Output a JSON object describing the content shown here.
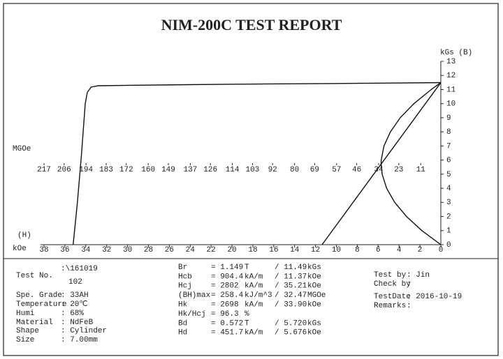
{
  "title": "NIM-200C TEST REPORT",
  "chart_data": {
    "type": "line",
    "x_label": "kOe",
    "h_label": "(H)",
    "x2_label": "MGOe",
    "y_label": "kGs (B)",
    "xlim": [
      38,
      0
    ],
    "xticks": [
      38,
      36,
      34,
      32,
      30,
      28,
      26,
      24,
      22,
      20,
      18,
      16,
      14,
      12,
      10,
      8,
      6,
      4,
      2,
      0
    ],
    "x2lim": [
      217,
      0
    ],
    "x2ticks": [
      217,
      206,
      194,
      183,
      172,
      160,
      149,
      137,
      126,
      114,
      103,
      92,
      80,
      69,
      57,
      46,
      34,
      23,
      11
    ],
    "ylim": [
      0,
      13
    ],
    "yticks": [
      0,
      1,
      2,
      3,
      4,
      5,
      6,
      7,
      8,
      9,
      10,
      11,
      12,
      13
    ],
    "series": [
      {
        "color": "#111",
        "x": [
          0,
          5,
          10,
          20,
          30,
          32.8,
          33.5,
          33.85,
          34.05,
          34.4,
          34.8,
          35.21
        ],
        "y": [
          11.49,
          11.46,
          11.43,
          11.38,
          11.3,
          11.27,
          11.17,
          10.8,
          10.0,
          6.5,
          3.0,
          0
        ]
      },
      {
        "color": "#111",
        "x": [
          0,
          11.37
        ],
        "y": [
          11.49,
          0
        ]
      },
      {
        "color": "#111",
        "axis": "x2",
        "x": [
          0,
          10.38,
          18.78,
          25.2,
          29.65,
          32.1,
          32.66,
          32.6,
          31.1,
          27.6,
          22.2,
          14.7,
          5.3,
          0
        ],
        "y": [
          0,
          1,
          2,
          3,
          4,
          5,
          5.745,
          6,
          7,
          8,
          9,
          10,
          11,
          11.49
        ]
      }
    ]
  },
  "report": {
    "left": [
      {
        "label": "Test No.",
        "value": [
          ":\\161019",
          "102"
        ]
      },
      {
        "label": "Spe. Grade",
        "value": [
          ": 33AH"
        ]
      },
      {
        "label": "Temperature",
        "value": [
          ": 20℃"
        ]
      },
      {
        "label": "Humi",
        "value": [
          ": 68%"
        ]
      },
      {
        "label": "Material",
        "value": [
          ": NdFeB"
        ]
      },
      {
        "label": "Shape",
        "value": [
          ": Cylinder"
        ]
      },
      {
        "label": "Size",
        "value": [
          ": 7.00mm"
        ]
      }
    ],
    "measurements": [
      [
        "Br",
        "= 1.149",
        "T",
        "/ 11.49",
        "kGs"
      ],
      [
        "Hcb",
        "= 904.4",
        "kA/m",
        "/ 11.37",
        "kOe"
      ],
      [
        "Hcj",
        "= 2802",
        "kA/m",
        "/ 35.21",
        "kOe"
      ],
      [
        "(BH)max",
        "= 258.4",
        "kJ/m^3",
        "/ 32.47",
        "MGOe"
      ],
      [
        "Hk",
        "= 2698",
        "kA/m",
        "/ 33.90",
        "kOe"
      ],
      [
        "Hk/Hcj",
        "= 96.3",
        "%",
        "",
        ""
      ],
      [
        "Bd",
        "= 0.572",
        "T",
        "/ 5.720",
        "kGs"
      ],
      [
        "Hd",
        "= 451.7",
        "kA/m",
        "/ 5.676",
        "kOe"
      ]
    ],
    "right": [
      {
        "label": "Test by",
        "value": ": Jin"
      },
      {
        "label": "Check by",
        "value": ":"
      },
      {
        "label": "TestDate",
        "value": ": 2016-10-19"
      },
      {
        "label": "Remarks",
        "value": ":"
      }
    ]
  }
}
